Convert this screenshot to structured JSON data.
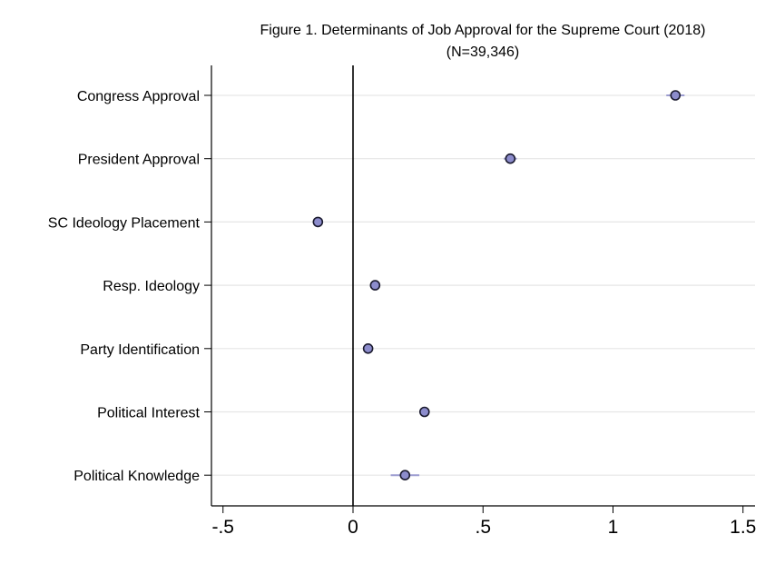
{
  "chart_data": {
    "type": "scatter",
    "title": "Figure 1. Determinants of Job Approval for the Supreme Court (2018)",
    "subtitle": "(N=39,346)",
    "categories": [
      "Congress Approval",
      "President Approval",
      "SC Ideology Placement",
      "Resp. Ideology",
      "Party Identification",
      "Political Interest",
      "Political Knowledge"
    ],
    "series": [
      {
        "values": [
          1.24,
          0.605,
          -0.135,
          0.085,
          0.058,
          0.275,
          0.2
        ],
        "ci_low": [
          1.205,
          0.58,
          -0.15,
          0.075,
          0.045,
          0.255,
          0.145
        ],
        "ci_high": [
          1.275,
          0.63,
          -0.12,
          0.095,
          0.07,
          0.295,
          0.255
        ]
      }
    ],
    "xlim": [
      -0.55,
      1.55
    ],
    "x_ticks": [
      -0.5,
      0,
      0.5,
      1,
      1.5
    ],
    "x_tick_labels": [
      "-.5",
      "0",
      ".5",
      "1",
      "1.5"
    ],
    "reference_line_x": 0,
    "grid": true,
    "colors": {
      "marker_fill": "#8C8CCC",
      "marker_stroke": "#1a1a2e",
      "ci_line": "#9c9cd0",
      "grid": "#e6e6e6",
      "axis": "#000000"
    }
  }
}
